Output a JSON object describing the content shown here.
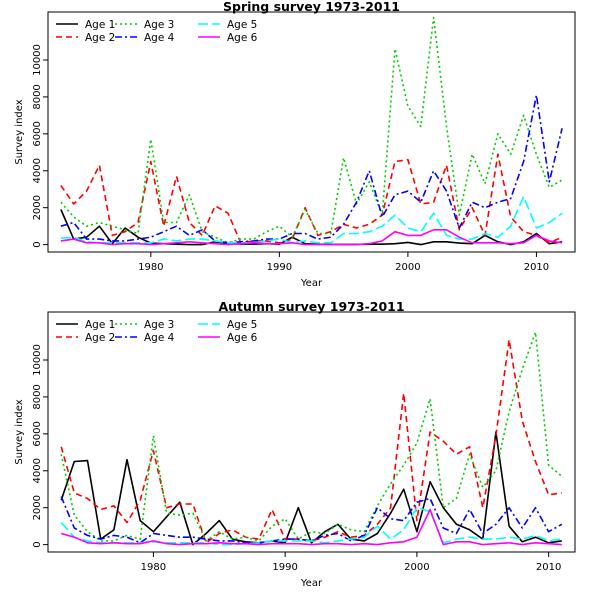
{
  "chart_data": [
    {
      "type": "line",
      "title": "Spring survey 1973-2011",
      "xlabel": "Year",
      "ylabel": "Survey index",
      "xlim": [
        1972,
        2013
      ],
      "ylim": [
        -400,
        12600
      ],
      "xticks": [
        1980,
        1990,
        2000,
        2010
      ],
      "yticks": [
        0,
        2000,
        4000,
        6000,
        8000,
        10000
      ],
      "grid": false,
      "legend": "top-left",
      "x": [
        1973,
        1974,
        1975,
        1976,
        1977,
        1978,
        1979,
        1980,
        1981,
        1982,
        1983,
        1984,
        1985,
        1986,
        1987,
        1988,
        1989,
        1990,
        1991,
        1992,
        1993,
        1994,
        1995,
        1996,
        1997,
        1998,
        1999,
        2000,
        2001,
        2002,
        2003,
        2004,
        2005,
        2006,
        2007,
        2008,
        2009,
        2010,
        2011,
        2012
      ],
      "series": [
        {
          "name": "Age 1",
          "color": "#000000",
          "dash": "solid",
          "values": [
            1900,
            300,
            400,
            1000,
            50,
            900,
            400,
            80,
            50,
            20,
            0,
            0,
            150,
            60,
            30,
            30,
            50,
            20,
            400,
            50,
            20,
            10,
            10,
            10,
            30,
            20,
            50,
            120,
            0,
            150,
            150,
            80,
            50,
            500,
            150,
            0,
            150,
            600,
            50,
            150
          ]
        },
        {
          "name": "Age 2",
          "color": "#ff0000",
          "dash": "dashed",
          "values": [
            3200,
            2200,
            2900,
            4300,
            500,
            700,
            1200,
            4500,
            1000,
            3700,
            1200,
            500,
            2100,
            1700,
            100,
            200,
            200,
            100,
            300,
            2000,
            500,
            700,
            1100,
            900,
            1100,
            1600,
            4500,
            4600,
            2200,
            2300,
            4300,
            800,
            2000,
            500,
            4900,
            1500,
            700,
            500,
            100,
            400
          ]
        },
        {
          "name": "Age 3",
          "color": "#00cd00",
          "dash": "dotted",
          "values": [
            2300,
            1500,
            1000,
            1200,
            1000,
            800,
            600,
            5700,
            1200,
            1200,
            2700,
            700,
            400,
            100,
            300,
            300,
            700,
            1000,
            400,
            1900,
            600,
            600,
            4700,
            2200,
            3400,
            1600,
            10600,
            7500,
            6400,
            12300,
            6400,
            1600,
            4900,
            3300,
            6000,
            4900,
            7000,
            4900,
            3100,
            3500
          ]
        },
        {
          "name": "Age 4",
          "color": "#0000ff",
          "dash": "dashdot",
          "values": [
            1000,
            1200,
            300,
            300,
            200,
            200,
            300,
            400,
            700,
            1000,
            500,
            800,
            200,
            100,
            150,
            200,
            300,
            300,
            600,
            600,
            300,
            400,
            1100,
            2300,
            4000,
            1500,
            2700,
            2900,
            2300,
            4000,
            2900,
            900,
            2300,
            2000,
            2300,
            2500,
            4500,
            8100,
            3400,
            6300
          ]
        },
        {
          "name": "Age 5",
          "color": "#00ffff",
          "dash": "longdash",
          "values": [
            350,
            400,
            150,
            100,
            100,
            100,
            100,
            100,
            300,
            200,
            300,
            300,
            200,
            100,
            100,
            100,
            200,
            300,
            100,
            200,
            100,
            100,
            600,
            600,
            700,
            1000,
            1600,
            900,
            700,
            1700,
            500,
            300,
            300,
            600,
            400,
            1000,
            2600,
            900,
            1200,
            1700
          ]
        },
        {
          "name": "Age 6",
          "color": "#ff00ff",
          "dash": "solid",
          "values": [
            200,
            300,
            100,
            100,
            0,
            50,
            50,
            0,
            50,
            100,
            150,
            100,
            50,
            0,
            50,
            100,
            50,
            50,
            100,
            0,
            0,
            0,
            0,
            0,
            50,
            200,
            700,
            500,
            500,
            800,
            800,
            400,
            100,
            100,
            100,
            50,
            100,
            500,
            200,
            100
          ]
        }
      ]
    },
    {
      "type": "line",
      "title": "Autumn survey 1973-2011",
      "xlabel": "Year",
      "ylabel": "Survey index",
      "xlim": [
        1972,
        2012
      ],
      "ylim": [
        -400,
        12600
      ],
      "xticks": [
        1980,
        1990,
        2000,
        2010
      ],
      "yticks": [
        0,
        2000,
        4000,
        6000,
        8000,
        10000
      ],
      "grid": false,
      "legend": "top-left",
      "x": [
        1973,
        1974,
        1975,
        1976,
        1977,
        1978,
        1979,
        1980,
        1981,
        1982,
        1983,
        1984,
        1985,
        1986,
        1987,
        1988,
        1989,
        1990,
        1991,
        1992,
        1993,
        1994,
        1995,
        1996,
        1997,
        1998,
        1999,
        2000,
        2001,
        2002,
        2003,
        2004,
        2005,
        2006,
        2007,
        2008,
        2009,
        2010,
        2011
      ],
      "series": [
        {
          "name": "Age 1",
          "color": "#000000",
          "dash": "solid",
          "values": [
            2400,
            4500,
            4550,
            300,
            800,
            4600,
            1300,
            700,
            1500,
            2300,
            0,
            600,
            1300,
            300,
            150,
            100,
            200,
            100,
            2000,
            100,
            700,
            1100,
            300,
            200,
            600,
            1700,
            3000,
            700,
            3400,
            2000,
            1100,
            800,
            300,
            6100,
            1000,
            150,
            400,
            100,
            200
          ]
        },
        {
          "name": "Age 2",
          "color": "#ff0000",
          "dash": "dashed",
          "values": [
            5300,
            2800,
            2500,
            1900,
            2100,
            1200,
            2400,
            5100,
            2000,
            2200,
            2200,
            100,
            600,
            800,
            400,
            300,
            1900,
            300,
            300,
            200,
            400,
            700,
            400,
            500,
            1100,
            2000,
            8200,
            1300,
            6100,
            5600,
            4900,
            5300,
            2000,
            5900,
            11100,
            6700,
            4500,
            2700,
            2800
          ]
        },
        {
          "name": "Age 3",
          "color": "#00cd00",
          "dash": "dotted",
          "values": [
            4900,
            1600,
            700,
            200,
            200,
            500,
            300,
            5900,
            1700,
            1600,
            1700,
            200,
            700,
            300,
            400,
            200,
            1000,
            1400,
            300,
            700,
            600,
            1100,
            800,
            700,
            2100,
            3300,
            4300,
            5500,
            7900,
            2000,
            2500,
            4900,
            3100,
            4000,
            7200,
            9500,
            11500,
            4300,
            3700
          ]
        },
        {
          "name": "Age 4",
          "color": "#0000ff",
          "dash": "dashdot",
          "values": [
            2600,
            900,
            500,
            300,
            500,
            400,
            100,
            600,
            500,
            400,
            400,
            300,
            200,
            200,
            100,
            100,
            200,
            300,
            300,
            200,
            500,
            600,
            200,
            500,
            2000,
            1400,
            1300,
            2300,
            2500,
            900,
            600,
            1900,
            600,
            1100,
            2000,
            900,
            2000,
            700,
            1100
          ]
        },
        {
          "name": "Age 5",
          "color": "#00ffff",
          "dash": "longdash",
          "values": [
            1200,
            400,
            200,
            100,
            100,
            100,
            100,
            150,
            100,
            100,
            100,
            100,
            0,
            0,
            50,
            100,
            200,
            200,
            200,
            200,
            100,
            200,
            300,
            400,
            1000,
            300,
            800,
            2000,
            1800,
            100,
            300,
            400,
            300,
            300,
            400,
            300,
            500,
            200,
            300
          ]
        },
        {
          "name": "Age 6",
          "color": "#ff00ff",
          "dash": "solid",
          "values": [
            600,
            400,
            100,
            50,
            100,
            50,
            50,
            200,
            50,
            0,
            50,
            50,
            100,
            50,
            50,
            0,
            50,
            50,
            50,
            0,
            50,
            50,
            0,
            50,
            0,
            100,
            150,
            400,
            1900,
            0,
            150,
            150,
            0,
            50,
            100,
            0,
            100,
            50,
            0
          ]
        }
      ]
    }
  ]
}
